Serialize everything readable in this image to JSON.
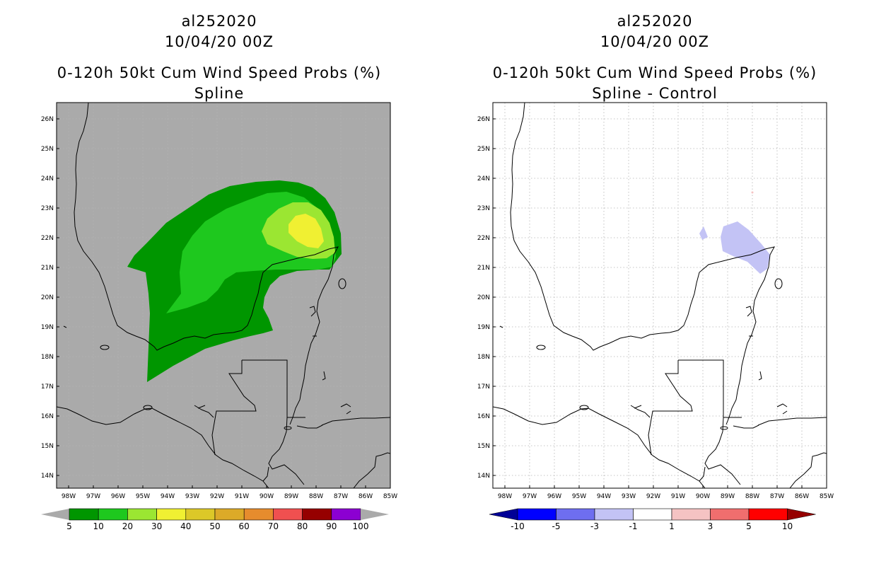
{
  "left_panel": {
    "storm_id": "al252020",
    "date": "10/04/20 00Z",
    "product": "0-120h 50kt Cum Wind Speed Probs (%)",
    "subtitle": "Spline",
    "background_color": "#aaaaaa",
    "colorbar": {
      "labels": [
        "5",
        "10",
        "20",
        "30",
        "40",
        "50",
        "60",
        "70",
        "80",
        "90",
        "100"
      ],
      "colors": [
        "#009600",
        "#1ec81e",
        "#9be632",
        "#f0f032",
        "#dcc828",
        "#dcaa28",
        "#e68c2d",
        "#f05050",
        "#960000",
        "#8c00d2"
      ],
      "end_color": "#aaaaaa"
    }
  },
  "right_panel": {
    "storm_id": "al252020",
    "date": "10/04/20 00Z",
    "product": "0-120h 50kt Cum Wind Speed Probs (%)",
    "subtitle": "Spline - Control",
    "background_color": "#ffffff",
    "colorbar": {
      "labels": [
        "-10",
        "-5",
        "-3",
        "-1",
        "1",
        "3",
        "5",
        "10"
      ],
      "colors": [
        "#0000ff",
        "#6e6ef0",
        "#c3c3f5",
        "#ffffff",
        "#f5c3c3",
        "#f06e6e",
        "#ff0000"
      ],
      "left_end_color": "#000096",
      "right_end_color": "#960000"
    }
  },
  "axes": {
    "lat_labels": [
      "26N",
      "25N",
      "24N",
      "23N",
      "22N",
      "21N",
      "20N",
      "19N",
      "18N",
      "17N",
      "16N",
      "15N",
      "14N"
    ],
    "lon_labels": [
      "98W",
      "97W",
      "96W",
      "95W",
      "94W",
      "93W",
      "92W",
      "91W",
      "90W",
      "89W",
      "88W",
      "87W",
      "86W",
      "85W"
    ]
  }
}
